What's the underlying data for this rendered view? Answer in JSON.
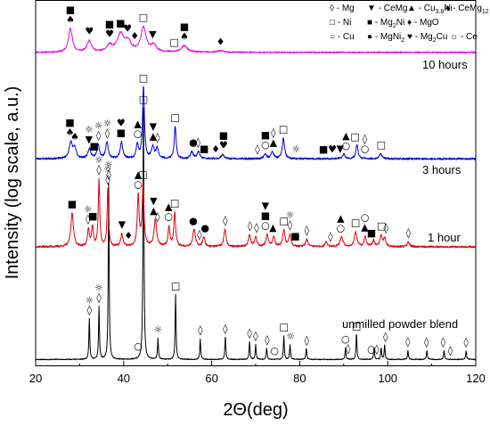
{
  "chart_data": {
    "type": "line",
    "xlabel": "2Θ(deg)",
    "ylabel": "Intensity (log scale, a.u.)",
    "xlim": [
      20,
      120
    ],
    "xticks": [
      20,
      40,
      60,
      80,
      100,
      120
    ],
    "y_ticks_shown": false,
    "legend_placement": "top-right",
    "legend": [
      {
        "symbol": "◊",
        "label": "- Mg"
      },
      {
        "symbol": "▼",
        "label": "- CeMg"
      },
      {
        "symbol": "▲",
        "label": "- Cu",
        "sub": "3.8",
        "after": "Ni"
      },
      {
        "symbol": "♠",
        "label": "- CeMg",
        "sub": "12",
        "after": ""
      },
      {
        "symbol": "□",
        "label": "- Ni"
      },
      {
        "symbol": "■",
        "label": "- Mg",
        "sub": "2",
        "after": "Ni"
      },
      {
        "symbol": "♦",
        "label": "- MgO"
      },
      {
        "symbol": "○",
        "label": "- Cu"
      },
      {
        "symbol": "●",
        "label": "- MgNi",
        "sub": "2",
        "after": ""
      },
      {
        "symbol": "♥",
        "label": "- Mg",
        "sub": "2",
        "after": "Cu"
      },
      {
        "symbol": "☼",
        "label": "- Ce"
      }
    ],
    "series": [
      {
        "name": "unmilled powder blend",
        "color": "#000000",
        "baseline": 0.5,
        "noise": 0.15,
        "peaks": [
          {
            "x": 32.2,
            "h": 14,
            "w": 0.12
          },
          {
            "x": 34.4,
            "h": 18,
            "w": 0.12
          },
          {
            "x": 36.6,
            "h": 60,
            "w": 0.12
          },
          {
            "x": 44.5,
            "h": 92,
            "w": 0.12
          },
          {
            "x": 47.8,
            "h": 7,
            "w": 0.12
          },
          {
            "x": 51.8,
            "h": 22,
            "w": 0.12
          },
          {
            "x": 57.4,
            "h": 7,
            "w": 0.12
          },
          {
            "x": 63.1,
            "h": 8,
            "w": 0.12
          },
          {
            "x": 68.6,
            "h": 6,
            "w": 0.12
          },
          {
            "x": 70.0,
            "h": 5,
            "w": 0.12
          },
          {
            "x": 72.5,
            "h": 4,
            "w": 0.12
          },
          {
            "x": 76.4,
            "h": 8,
            "w": 0.12
          },
          {
            "x": 77.8,
            "h": 5,
            "w": 0.12
          },
          {
            "x": 81.5,
            "h": 4,
            "w": 0.12
          },
          {
            "x": 90.4,
            "h": 4,
            "w": 0.12
          },
          {
            "x": 92.9,
            "h": 9,
            "w": 0.12
          },
          {
            "x": 96.9,
            "h": 4,
            "w": 0.12
          },
          {
            "x": 98.5,
            "h": 4,
            "w": 0.12
          },
          {
            "x": 99.3,
            "h": 5,
            "w": 0.12
          },
          {
            "x": 104.6,
            "h": 3,
            "w": 0.12
          },
          {
            "x": 108.9,
            "h": 3,
            "w": 0.12
          },
          {
            "x": 112.8,
            "h": 3,
            "w": 0.12
          },
          {
            "x": 117.8,
            "h": 3,
            "w": 0.12
          }
        ]
      },
      {
        "name": "1 hour",
        "color": "#e8000b",
        "baseline": 6,
        "noise": 0.8,
        "peaks": [
          {
            "x": 28.3,
            "h": 28,
            "w": 0.35
          },
          {
            "x": 32.0,
            "h": 14,
            "w": 0.25
          },
          {
            "x": 32.9,
            "h": 16,
            "w": 0.25
          },
          {
            "x": 34.4,
            "h": 55,
            "w": 0.2
          },
          {
            "x": 36.4,
            "h": 48,
            "w": 0.2
          },
          {
            "x": 39.6,
            "h": 10,
            "w": 0.3
          },
          {
            "x": 43.3,
            "h": 42,
            "w": 0.25
          },
          {
            "x": 44.4,
            "h": 50,
            "w": 0.25
          },
          {
            "x": 47.2,
            "h": 22,
            "w": 0.35
          },
          {
            "x": 50.3,
            "h": 16,
            "w": 0.25
          },
          {
            "x": 51.6,
            "h": 28,
            "w": 0.25
          },
          {
            "x": 56.0,
            "h": 14,
            "w": 0.35
          },
          {
            "x": 58.2,
            "h": 8,
            "w": 0.3
          },
          {
            "x": 63.0,
            "h": 14,
            "w": 0.3
          },
          {
            "x": 68.6,
            "h": 10,
            "w": 0.3
          },
          {
            "x": 70.0,
            "h": 8,
            "w": 0.3
          },
          {
            "x": 72.6,
            "h": 10,
            "w": 0.3
          },
          {
            "x": 74.1,
            "h": 8,
            "w": 0.3
          },
          {
            "x": 76.4,
            "h": 14,
            "w": 0.3
          },
          {
            "x": 77.8,
            "h": 10,
            "w": 0.3
          },
          {
            "x": 81.6,
            "h": 6,
            "w": 0.3
          },
          {
            "x": 86.0,
            "h": 4,
            "w": 0.3
          },
          {
            "x": 89.5,
            "h": 8,
            "w": 0.4
          },
          {
            "x": 92.7,
            "h": 12,
            "w": 0.35
          },
          {
            "x": 94.9,
            "h": 8,
            "w": 0.3
          },
          {
            "x": 96.8,
            "h": 5,
            "w": 0.3
          },
          {
            "x": 98.5,
            "h": 9,
            "w": 0.3
          },
          {
            "x": 99.3,
            "h": 7,
            "w": 0.3
          },
          {
            "x": 104.7,
            "h": 4,
            "w": 0.3
          }
        ]
      },
      {
        "name": "3 hours",
        "color": "#0000e0",
        "baseline": 6,
        "noise": 0.8,
        "peaks": [
          {
            "x": 28.0,
            "h": 14,
            "w": 0.45
          },
          {
            "x": 28.9,
            "h": 8,
            "w": 0.4
          },
          {
            "x": 32.2,
            "h": 8,
            "w": 0.4
          },
          {
            "x": 34.2,
            "h": 12,
            "w": 0.35
          },
          {
            "x": 36.2,
            "h": 14,
            "w": 0.35
          },
          {
            "x": 39.5,
            "h": 14,
            "w": 0.35
          },
          {
            "x": 43.1,
            "h": 12,
            "w": 0.3
          },
          {
            "x": 44.5,
            "h": 62,
            "w": 0.25
          },
          {
            "x": 46.6,
            "h": 10,
            "w": 0.35
          },
          {
            "x": 47.6,
            "h": 9,
            "w": 0.35
          },
          {
            "x": 51.7,
            "h": 28,
            "w": 0.25
          },
          {
            "x": 55.5,
            "h": 6,
            "w": 0.35
          },
          {
            "x": 57.0,
            "h": 6,
            "w": 0.35
          },
          {
            "x": 62.5,
            "h": 4,
            "w": 0.35
          },
          {
            "x": 72.2,
            "h": 4,
            "w": 0.35
          },
          {
            "x": 73.8,
            "h": 6,
            "w": 0.35
          },
          {
            "x": 76.3,
            "h": 18,
            "w": 0.3
          },
          {
            "x": 90.0,
            "h": 4,
            "w": 0.35
          },
          {
            "x": 93.0,
            "h": 12,
            "w": 0.3
          },
          {
            "x": 98.4,
            "h": 5,
            "w": 0.3
          }
        ]
      },
      {
        "name": "10 hours",
        "color": "#e600e6",
        "baseline": 8,
        "noise": 0.9,
        "peaks": [
          {
            "x": 27.9,
            "h": 30,
            "w": 0.5
          },
          {
            "x": 32.2,
            "h": 14,
            "w": 0.6
          },
          {
            "x": 36.8,
            "h": 8,
            "w": 0.7
          },
          {
            "x": 39.3,
            "h": 22,
            "w": 0.9
          },
          {
            "x": 41.0,
            "h": 12,
            "w": 0.8
          },
          {
            "x": 44.5,
            "h": 30,
            "w": 0.7
          },
          {
            "x": 46.8,
            "h": 8,
            "w": 0.8
          },
          {
            "x": 53.8,
            "h": 8,
            "w": 0.8
          },
          {
            "x": 62.0,
            "h": 2,
            "w": 0.8
          }
        ]
      }
    ]
  },
  "series_labels": {
    "s10": "10 hours",
    "s3": "3 hours",
    "s1": "1 hour",
    "s0": "unmilled powder blend"
  },
  "markers": [
    {
      "series": "10 hours",
      "x": 27.9,
      "stack": [
        "♠",
        "■"
      ]
    },
    {
      "series": "10 hours",
      "x": 32.2,
      "stack": [
        "♥"
      ]
    },
    {
      "series": "10 hours",
      "x": 36.8,
      "stack": [
        "♥",
        "■"
      ]
    },
    {
      "series": "10 hours",
      "x": 39.3,
      "stack": [
        "■"
      ]
    },
    {
      "series": "10 hours",
      "x": 40.9,
      "stack": [
        "♥"
      ]
    },
    {
      "series": "10 hours",
      "x": 42.5,
      "stack": [
        "♦"
      ]
    },
    {
      "series": "10 hours",
      "x": 44.5,
      "stack": [
        "□"
      ]
    },
    {
      "series": "10 hours",
      "x": 46.6,
      "stack": [
        "▼"
      ]
    },
    {
      "series": "10 hours",
      "x": 51.5,
      "stack": [
        "□"
      ]
    },
    {
      "series": "10 hours",
      "x": 53.8,
      "stack": [
        "♠",
        "■"
      ]
    },
    {
      "series": "10 hours",
      "x": 62.0,
      "stack": [
        "♦"
      ]
    },
    {
      "series": "3 hours",
      "x": 27.8,
      "stack": [
        "♠",
        "■"
      ]
    },
    {
      "series": "3 hours",
      "x": 28.9,
      "stack": [
        "♠"
      ]
    },
    {
      "series": "3 hours",
      "x": 32.1,
      "stack": [
        "▼",
        "☼"
      ]
    },
    {
      "series": "3 hours",
      "x": 33.3,
      "stack": [
        "■"
      ]
    },
    {
      "series": "3 hours",
      "x": 34.3,
      "stack": [
        "◊",
        "☼"
      ]
    },
    {
      "series": "3 hours",
      "x": 36.3,
      "stack": [
        "◊",
        "☼"
      ]
    },
    {
      "series": "3 hours",
      "x": 39.4,
      "stack": [
        "■",
        "♥"
      ]
    },
    {
      "series": "3 hours",
      "x": 43.2,
      "stack": [
        "○",
        "▲"
      ]
    },
    {
      "series": "3 hours",
      "x": 44.5,
      "stack": [
        "□"
      ]
    },
    {
      "series": "3 hours",
      "x": 46.7,
      "stack": [
        "▲",
        "▼"
      ]
    },
    {
      "series": "3 hours",
      "x": 47.7,
      "stack": [
        "◊"
      ]
    },
    {
      "series": "3 hours",
      "x": 51.7,
      "stack": [
        "□"
      ]
    },
    {
      "series": "3 hours",
      "x": 55.8,
      "stack": [
        "●"
      ]
    },
    {
      "series": "3 hours",
      "x": 56.9,
      "stack": [
        "◊"
      ]
    },
    {
      "series": "3 hours",
      "x": 58.3,
      "stack": [
        "■"
      ]
    },
    {
      "series": "3 hours",
      "x": 60.9,
      "stack": [
        "♦"
      ]
    },
    {
      "series": "3 hours",
      "x": 62.7,
      "stack": [
        "♥",
        "■"
      ]
    },
    {
      "series": "3 hours",
      "x": 70.4,
      "stack": [
        "◊"
      ]
    },
    {
      "series": "3 hours",
      "x": 72.2,
      "stack": [
        "○",
        "■"
      ]
    },
    {
      "series": "3 hours",
      "x": 74.0,
      "stack": [
        "▲",
        "◊"
      ]
    },
    {
      "series": "3 hours",
      "x": 76.3,
      "stack": [
        "□"
      ]
    },
    {
      "series": "3 hours",
      "x": 79.2,
      "stack": [
        "☼"
      ]
    },
    {
      "series": "3 hours",
      "x": 85.4,
      "stack": [
        "■"
      ]
    },
    {
      "series": "3 hours",
      "x": 87.4,
      "stack": [
        "♥"
      ]
    },
    {
      "series": "3 hours",
      "x": 89.2,
      "stack": [
        "▼"
      ]
    },
    {
      "series": "3 hours",
      "x": 90.5,
      "stack": [
        "○",
        "▲"
      ]
    },
    {
      "series": "3 hours",
      "x": 92.6,
      "stack": [
        "□"
      ]
    },
    {
      "series": "3 hours",
      "x": 94.8,
      "stack": [
        "○",
        "◊"
      ]
    },
    {
      "series": "3 hours",
      "x": 98.5,
      "stack": [
        "□"
      ]
    },
    {
      "series": "1 hour",
      "x": 28.3,
      "stack": [
        "■"
      ]
    },
    {
      "series": "1 hour",
      "x": 31.9,
      "stack": [
        "◊",
        "☼"
      ]
    },
    {
      "series": "1 hour",
      "x": 33.0,
      "stack": [
        "■"
      ]
    },
    {
      "series": "1 hour",
      "x": 34.4,
      "stack": [
        "◊",
        "☼"
      ]
    },
    {
      "series": "1 hour",
      "x": 36.4,
      "stack": [
        "◊",
        "☼"
      ]
    },
    {
      "series": "1 hour",
      "x": 39.6,
      "stack": [
        "▼"
      ]
    },
    {
      "series": "1 hour",
      "x": 41.1,
      "stack": [
        "♦"
      ]
    },
    {
      "series": "1 hour",
      "x": 43.3,
      "stack": [
        "○",
        "▲"
      ]
    },
    {
      "series": "1 hour",
      "x": 44.4,
      "stack": [
        "□"
      ]
    },
    {
      "series": "1 hour",
      "x": 46.8,
      "stack": [
        "▲",
        "▼"
      ]
    },
    {
      "series": "1 hour",
      "x": 47.7,
      "stack": [
        "◊"
      ]
    },
    {
      "series": "1 hour",
      "x": 50.2,
      "stack": [
        "○",
        "▲"
      ]
    },
    {
      "series": "1 hour",
      "x": 51.6,
      "stack": [
        "□"
      ]
    },
    {
      "series": "1 hour",
      "x": 55.8,
      "stack": [
        "●"
      ]
    },
    {
      "series": "1 hour",
      "x": 57.2,
      "stack": [
        "◊"
      ]
    },
    {
      "series": "1 hour",
      "x": 58.5,
      "stack": [
        "●"
      ]
    },
    {
      "series": "1 hour",
      "x": 63.1,
      "stack": [
        "◊"
      ]
    },
    {
      "series": "1 hour",
      "x": 68.7,
      "stack": [
        "◊"
      ]
    },
    {
      "series": "1 hour",
      "x": 70.2,
      "stack": [
        "◊"
      ]
    },
    {
      "series": "1 hour",
      "x": 72.2,
      "stack": [
        "○",
        "■",
        "▼"
      ]
    },
    {
      "series": "1 hour",
      "x": 73.9,
      "stack": [
        "▲"
      ]
    },
    {
      "series": "1 hour",
      "x": 76.4,
      "stack": [
        "□"
      ]
    },
    {
      "series": "1 hour",
      "x": 77.8,
      "stack": [
        "◊",
        "☼"
      ]
    },
    {
      "series": "1 hour",
      "x": 79.0,
      "stack": [
        "■"
      ]
    },
    {
      "series": "1 hour",
      "x": 81.6,
      "stack": [
        "◊"
      ]
    },
    {
      "series": "1 hour",
      "x": 87.0,
      "stack": [
        "◊"
      ]
    },
    {
      "series": "1 hour",
      "x": 89.3,
      "stack": [
        "○",
        "▲"
      ]
    },
    {
      "series": "1 hour",
      "x": 92.7,
      "stack": [
        "□"
      ]
    },
    {
      "series": "1 hour",
      "x": 94.8,
      "stack": [
        "▲",
        "○"
      ]
    },
    {
      "series": "1 hour",
      "x": 96.3,
      "stack": [
        "■"
      ]
    },
    {
      "series": "1 hour",
      "x": 98.6,
      "stack": [
        "□"
      ]
    },
    {
      "series": "1 hour",
      "x": 99.6,
      "stack": [
        "◊"
      ]
    },
    {
      "series": "1 hour",
      "x": 104.7,
      "stack": [
        "◊"
      ]
    },
    {
      "series": "unmilled powder blend",
      "x": 32.2,
      "stack": [
        "◊",
        "☼"
      ]
    },
    {
      "series": "unmilled powder blend",
      "x": 34.4,
      "stack": [
        "◊",
        "☼"
      ]
    },
    {
      "series": "unmilled powder blend",
      "x": 36.6,
      "stack": [
        "◊",
        "☼"
      ]
    },
    {
      "series": "unmilled powder blend",
      "x": 43.3,
      "stack": [
        "○"
      ]
    },
    {
      "series": "unmilled powder blend",
      "x": 44.5,
      "stack": [
        "□"
      ]
    },
    {
      "series": "unmilled powder blend",
      "x": 47.8,
      "stack": [
        "☼"
      ]
    },
    {
      "series": "unmilled powder blend",
      "x": 51.8,
      "stack": [
        "□"
      ]
    },
    {
      "series": "unmilled powder blend",
      "x": 57.4,
      "stack": [
        "◊"
      ]
    },
    {
      "series": "unmilled powder blend",
      "x": 63.1,
      "stack": [
        "◊"
      ]
    },
    {
      "series": "unmilled powder blend",
      "x": 68.6,
      "stack": [
        "◊"
      ]
    },
    {
      "series": "unmilled powder blend",
      "x": 70.0,
      "stack": [
        "◊"
      ]
    },
    {
      "series": "unmilled powder blend",
      "x": 72.6,
      "stack": [
        "◊"
      ]
    },
    {
      "series": "unmilled powder blend",
      "x": 74.3,
      "stack": [
        "○"
      ]
    },
    {
      "series": "unmilled powder blend",
      "x": 76.4,
      "stack": [
        "□"
      ]
    },
    {
      "series": "unmilled powder blend",
      "x": 77.9,
      "stack": [
        "☼"
      ]
    },
    {
      "series": "unmilled powder blend",
      "x": 81.6,
      "stack": [
        "◊"
      ]
    },
    {
      "series": "unmilled powder blend",
      "x": 90.4,
      "stack": [
        "○"
      ]
    },
    {
      "series": "unmilled powder blend",
      "x": 91.0,
      "stack": [
        "◊"
      ]
    },
    {
      "series": "unmilled powder blend",
      "x": 92.9,
      "stack": [
        "□"
      ]
    },
    {
      "series": "unmilled powder blend",
      "x": 96.3,
      "stack": [
        "○"
      ]
    },
    {
      "series": "unmilled powder blend",
      "x": 97.5,
      "stack": [
        "◊"
      ]
    },
    {
      "series": "unmilled powder blend",
      "x": 99.5,
      "stack": [
        "◊"
      ]
    },
    {
      "series": "unmilled powder blend",
      "x": 104.6,
      "stack": [
        "◊"
      ]
    },
    {
      "series": "unmilled powder blend",
      "x": 108.8,
      "stack": [
        "◊"
      ]
    },
    {
      "series": "unmilled powder blend",
      "x": 112.6,
      "stack": [
        "◊"
      ]
    },
    {
      "series": "unmilled powder blend",
      "x": 114.2,
      "stack": [
        "◊"
      ]
    },
    {
      "series": "unmilled powder blend",
      "x": 117.8,
      "stack": [
        "◊"
      ]
    }
  ]
}
